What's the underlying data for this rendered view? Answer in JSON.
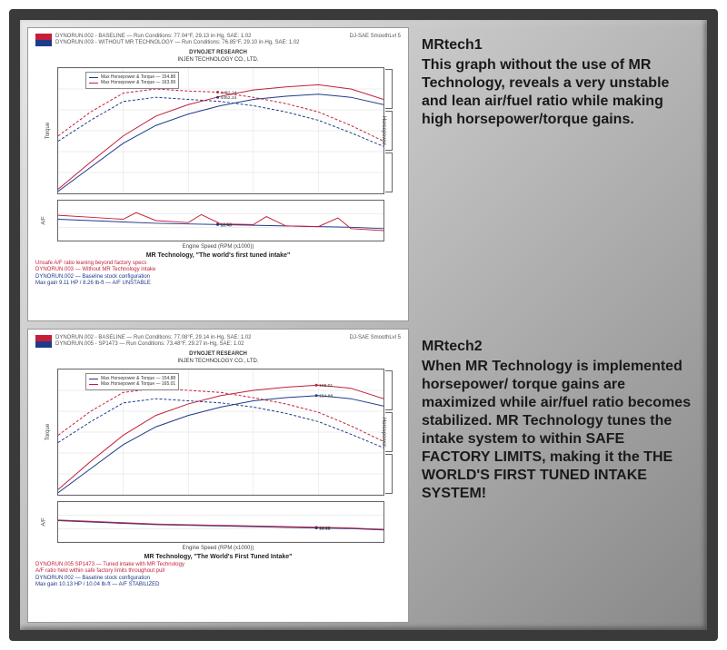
{
  "frame": {
    "border_color": "#3a3a3a",
    "bg_gradient": [
      "#e8e8e8",
      "#b8b8b8",
      "#888888"
    ]
  },
  "charts": [
    {
      "id": "mrtech1",
      "run1": "DYNORUN.002 - BASELINE — Run Conditions: 77.04°F, 29.13 in-Hg, SAE: 1.02",
      "run2": "DYNORUN.003 - WITHOUT MR TECHNOLOGY — Run Conditions: 76.85°F, 29.10 in-Hg, SAE: 1.02",
      "top_right": "DJ-SAE SmoothLvl 5",
      "title1": "DYNOJET RESEARCH",
      "title2": "INJEN TECHNOLOGY CO., LTD.",
      "legend": [
        {
          "label": "Max Horsepower & Torque — 154.88",
          "color": "#1e3a8a"
        },
        {
          "label": "Max Horsepower & Torque — 163.99",
          "color": "#c41e3a"
        }
      ],
      "main": {
        "ylabel_left": "Torque",
        "ylabel_right": "Horsepower",
        "xlim": [
          2000,
          7000
        ],
        "ylim": [
          60,
          180
        ],
        "xticks": [
          2000,
          3000,
          4000,
          5000,
          6000,
          7000
        ],
        "yticks": [
          60,
          80,
          100,
          120,
          140,
          160,
          180
        ],
        "series": [
          {
            "name": "baseline-hp",
            "color": "#1e3a8a",
            "width": 1,
            "points": [
              [
                2000,
                62
              ],
              [
                2500,
                85
              ],
              [
                3000,
                108
              ],
              [
                3500,
                125
              ],
              [
                4000,
                136
              ],
              [
                4500,
                144
              ],
              [
                5000,
                150
              ],
              [
                5500,
                153
              ],
              [
                6000,
                155
              ],
              [
                6500,
                152
              ],
              [
                7000,
                145
              ]
            ]
          },
          {
            "name": "baseline-tq",
            "color": "#1e3a8a",
            "width": 1,
            "dash": "3,2",
            "points": [
              [
                2000,
                110
              ],
              [
                2500,
                130
              ],
              [
                3000,
                148
              ],
              [
                3500,
                152
              ],
              [
                4000,
                150
              ],
              [
                4500,
                148
              ],
              [
                5000,
                144
              ],
              [
                5500,
                138
              ],
              [
                6000,
                130
              ],
              [
                6500,
                118
              ],
              [
                7000,
                105
              ]
            ]
          },
          {
            "name": "nomr-hp",
            "color": "#c41e3a",
            "width": 1,
            "points": [
              [
                2000,
                64
              ],
              [
                2500,
                90
              ],
              [
                3000,
                115
              ],
              [
                3500,
                134
              ],
              [
                4000,
                145
              ],
              [
                4500,
                153
              ],
              [
                5000,
                159
              ],
              [
                5500,
                162
              ],
              [
                6000,
                164
              ],
              [
                6500,
                160
              ],
              [
                7000,
                150
              ]
            ]
          },
          {
            "name": "nomr-tq",
            "color": "#c41e3a",
            "width": 1,
            "dash": "3,2",
            "points": [
              [
                2000,
                115
              ],
              [
                2500,
                138
              ],
              [
                3000,
                156
              ],
              [
                3500,
                160
              ],
              [
                4000,
                158
              ],
              [
                4452,
                157
              ],
              [
                5000,
                152
              ],
              [
                5500,
                146
              ],
              [
                6000,
                138
              ],
              [
                6500,
                125
              ],
              [
                7000,
                110
              ]
            ]
          }
        ],
        "markers": [
          {
            "x": 4452,
            "y": 157,
            "label": "4452.24",
            "color": "#c41e3a"
          },
          {
            "x": 4452,
            "y": 152,
            "label": "4452.24",
            "color": "#1e3a8a"
          }
        ]
      },
      "sub": {
        "ylabel_left": "A/F",
        "xlim": [
          2000,
          7000
        ],
        "ylim": [
          10,
          16
        ],
        "yticks": [
          10,
          12,
          14,
          16
        ],
        "series": [
          {
            "name": "baseline-af",
            "color": "#1e3a8a",
            "width": 1,
            "points": [
              [
                2000,
                13.2
              ],
              [
                2500,
                13.0
              ],
              [
                3000,
                12.8
              ],
              [
                3500,
                12.6
              ],
              [
                4000,
                12.5
              ],
              [
                4500,
                12.4
              ],
              [
                5000,
                12.3
              ],
              [
                5500,
                12.2
              ],
              [
                6000,
                12.1
              ],
              [
                6500,
                12.0
              ],
              [
                7000,
                11.8
              ]
            ]
          },
          {
            "name": "nomr-af",
            "color": "#c41e3a",
            "width": 1,
            "points": [
              [
                2000,
                13.8
              ],
              [
                2500,
                13.5
              ],
              [
                3000,
                13.2
              ],
              [
                3200,
                14.2
              ],
              [
                3500,
                13.0
              ],
              [
                4000,
                12.7
              ],
              [
                4200,
                13.9
              ],
              [
                4500,
                12.5
              ],
              [
                5000,
                12.4
              ],
              [
                5200,
                13.6
              ],
              [
                5500,
                12.2
              ],
              [
                6000,
                12.1
              ],
              [
                6300,
                13.4
              ],
              [
                6500,
                11.8
              ],
              [
                7000,
                11.5
              ]
            ]
          }
        ],
        "markers": [
          {
            "x": 4452,
            "y": 12.5,
            "label": "12.52",
            "color": "#c41e3a"
          },
          {
            "x": 4452,
            "y": 12.4,
            "label": "12.40",
            "color": "#1e3a8a"
          }
        ]
      },
      "xlabel": "Engine Speed (RPM (x1000))",
      "tagline": "MR Technology, \"The world's first tuned intake\"",
      "footer_red": "Unsafe A/F ratio leaning beyond factory specs\nDYNORUN.003 — Without MR Technology intake",
      "footer_blue": "DYNORUN.002 — Baseline stock configuration\nMax gain 9.11 HP / 8.26 lb-ft — A/F UNSTABLE",
      "side_text_title": "MRtech1",
      "side_text_body": "This graph without the use of MR Technology, reveals a very unstable and lean air/fuel ratio while making high horsepower/torque gains."
    },
    {
      "id": "mrtech2",
      "run1": "DYNORUN.002 - BASELINE — Run Conditions: 77.08°F, 29.14 in-Hg, SAE: 1.02",
      "run2": "DYNORUN.005 - SP1473 — Run Conditions: 73.48°F, 29.27 in-Hg, SAE: 1.02",
      "top_right": "DJ-SAE SmoothLvl 5",
      "title1": "DYNOJET RESEARCH",
      "title2": "INJEN TECHNOLOGY CO., LTD.",
      "legend": [
        {
          "label": "Max Horsepower & Torque — 154.88",
          "color": "#1e3a8a"
        },
        {
          "label": "Max Horsepower & Torque — 165.01",
          "color": "#c41e3a"
        }
      ],
      "main": {
        "ylabel_left": "Torque",
        "ylabel_right": "Horsepower",
        "xlim": [
          2000,
          7000
        ],
        "ylim": [
          60,
          180
        ],
        "xticks": [
          2000,
          3000,
          4000,
          5000,
          6000,
          7000
        ],
        "yticks": [
          60,
          80,
          100,
          120,
          140,
          160,
          180
        ],
        "series": [
          {
            "name": "baseline-hp",
            "color": "#1e3a8a",
            "width": 1,
            "points": [
              [
                2000,
                62
              ],
              [
                2500,
                85
              ],
              [
                3000,
                108
              ],
              [
                3500,
                125
              ],
              [
                4000,
                136
              ],
              [
                4500,
                144
              ],
              [
                5000,
                150
              ],
              [
                5500,
                153
              ],
              [
                6000,
                155
              ],
              [
                6500,
                152
              ],
              [
                7000,
                145
              ]
            ]
          },
          {
            "name": "baseline-tq",
            "color": "#1e3a8a",
            "width": 1,
            "dash": "3,2",
            "points": [
              [
                2000,
                110
              ],
              [
                2500,
                130
              ],
              [
                3000,
                148
              ],
              [
                3500,
                152
              ],
              [
                4000,
                150
              ],
              [
                4500,
                148
              ],
              [
                5000,
                144
              ],
              [
                5500,
                138
              ],
              [
                6000,
                130
              ],
              [
                6500,
                118
              ],
              [
                7000,
                105
              ]
            ]
          },
          {
            "name": "mr-hp",
            "color": "#c41e3a",
            "width": 1,
            "points": [
              [
                2000,
                65
              ],
              [
                2500,
                92
              ],
              [
                3000,
                117
              ],
              [
                3500,
                136
              ],
              [
                4000,
                147
              ],
              [
                4500,
                155
              ],
              [
                5000,
                160
              ],
              [
                5500,
                163
              ],
              [
                6000,
                165
              ],
              [
                6500,
                162
              ],
              [
                7000,
                152
              ]
            ]
          },
          {
            "name": "mr-tq",
            "color": "#c41e3a",
            "width": 1,
            "dash": "3,2",
            "points": [
              [
                2000,
                117
              ],
              [
                2500,
                140
              ],
              [
                3000,
                158
              ],
              [
                3500,
                162
              ],
              [
                4000,
                160
              ],
              [
                4500,
                158
              ],
              [
                5000,
                153
              ],
              [
                5500,
                147
              ],
              [
                6000,
                139
              ],
              [
                6500,
                126
              ],
              [
                7000,
                111
              ]
            ]
          }
        ],
        "markers": [
          {
            "x": 5968,
            "y": 165,
            "label": "165.01",
            "color": "#c41e3a"
          },
          {
            "x": 5968,
            "y": 155,
            "label": "154.88",
            "color": "#1e3a8a"
          }
        ]
      },
      "sub": {
        "ylabel_left": "A/F",
        "xlim": [
          2000,
          7000
        ],
        "ylim": [
          10,
          16
        ],
        "yticks": [
          10,
          12,
          14,
          16
        ],
        "series": [
          {
            "name": "baseline-af",
            "color": "#1e3a8a",
            "width": 1,
            "points": [
              [
                2000,
                13.2
              ],
              [
                2500,
                13.0
              ],
              [
                3000,
                12.8
              ],
              [
                3500,
                12.6
              ],
              [
                4000,
                12.5
              ],
              [
                4500,
                12.4
              ],
              [
                5000,
                12.3
              ],
              [
                5500,
                12.2
              ],
              [
                6000,
                12.1
              ],
              [
                6500,
                12.0
              ],
              [
                7000,
                11.8
              ]
            ]
          },
          {
            "name": "mr-af",
            "color": "#c41e3a",
            "width": 1,
            "points": [
              [
                2000,
                13.3
              ],
              [
                2500,
                13.1
              ],
              [
                3000,
                12.9
              ],
              [
                3500,
                12.7
              ],
              [
                4000,
                12.6
              ],
              [
                4500,
                12.5
              ],
              [
                5000,
                12.4
              ],
              [
                5500,
                12.3
              ],
              [
                6000,
                12.2
              ],
              [
                6500,
                12.1
              ],
              [
                7000,
                11.9
              ]
            ]
          }
        ],
        "markers": [
          {
            "x": 5968,
            "y": 12.2,
            "label": "12.23",
            "color": "#c41e3a"
          },
          {
            "x": 5968,
            "y": 12.1,
            "label": "12.12",
            "color": "#1e3a8a"
          }
        ]
      },
      "xlabel": "Engine Speed (RPM (x1000))",
      "tagline": "MR Technology, \"The World's First Tuned Intake\"",
      "footer_red": "DYNORUN.005 SP1473 — Tuned intake with MR Technology\nA/F ratio held within safe factory limits throughout pull",
      "footer_blue": "DYNORUN.002 — Baseline stock configuration\nMax gain 10.13 HP / 10.04 lb-ft — A/F STABILIZED",
      "side_text_title": "MRtech2",
      "side_text_body": "When MR Technology is implemented horsepower/ torque gains are maximized while air/fuel ratio becomes stabilized. MR Technology tunes the intake system to within SAFE FACTORY LIMITS, making it the THE WORLD'S FIRST TUNED INTAKE SYSTEM!"
    }
  ]
}
